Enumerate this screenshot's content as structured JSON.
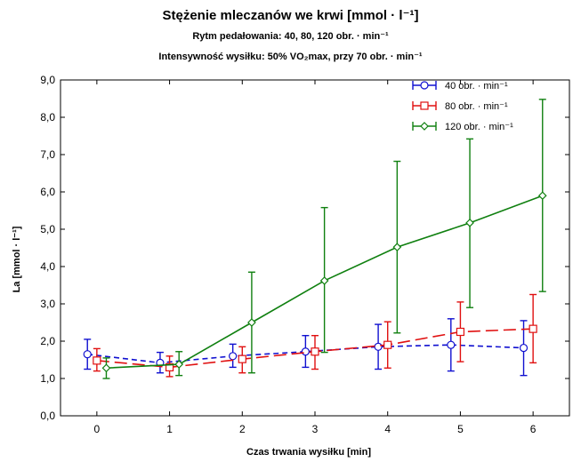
{
  "chart_data": {
    "type": "line",
    "title": "Stężenie mleczanów we krwi [mmol · l⁻¹]",
    "subtitle": "Rytm pedałowania: 40, 80, 120 obr. · min⁻¹",
    "subtitle2": "Intensywność wysiłku: 50% VO₂max, przy 70 obr. · min⁻¹",
    "xlabel": "Czas trwania wysiłku [min]",
    "ylabel": "La [mmol · l⁻¹]",
    "xlim": [
      -0.5,
      6.5
    ],
    "ylim": [
      0,
      9
    ],
    "x_ticks": [
      "0",
      "1",
      "2",
      "3",
      "4",
      "5",
      "6"
    ],
    "y_ticks": [
      "0,0",
      "1,0",
      "2,0",
      "3,0",
      "4,0",
      "5,0",
      "6,0",
      "7,0",
      "8,0",
      "9,0"
    ],
    "legend_position": "top-right",
    "series": [
      {
        "name": "40 obr. · min⁻¹",
        "color": "#1010d0",
        "marker": "circle",
        "dash": "dashed-short",
        "x": [
          -0.13,
          0.87,
          1.87,
          2.87,
          3.87,
          4.87,
          5.87
        ],
        "y": [
          1.65,
          1.42,
          1.6,
          1.72,
          1.85,
          1.9,
          1.82
        ],
        "err_low": [
          1.25,
          1.15,
          1.3,
          1.3,
          1.25,
          1.2,
          1.08
        ],
        "err_high": [
          2.05,
          1.7,
          1.92,
          2.15,
          2.45,
          2.6,
          2.55
        ]
      },
      {
        "name": "80 obr. · min⁻¹",
        "color": "#e01010",
        "marker": "square",
        "dash": "dashed-long",
        "x": [
          0,
          1,
          2,
          3,
          4,
          5,
          6
        ],
        "y": [
          1.48,
          1.3,
          1.52,
          1.72,
          1.9,
          2.25,
          2.33
        ],
        "err_low": [
          1.2,
          1.05,
          1.15,
          1.25,
          1.28,
          1.45,
          1.42
        ],
        "err_high": [
          1.8,
          1.6,
          1.85,
          2.15,
          2.52,
          3.05,
          3.25
        ]
      },
      {
        "name": "120 obr. · min⁻¹",
        "color": "#108010",
        "marker": "diamond",
        "dash": "solid",
        "x": [
          0.13,
          1.13,
          2.13,
          3.13,
          4.13,
          5.13,
          6.13
        ],
        "y": [
          1.28,
          1.38,
          2.5,
          3.62,
          4.52,
          5.17,
          5.9
        ],
        "err_low": [
          1.0,
          1.08,
          1.15,
          1.7,
          2.22,
          2.9,
          3.33
        ],
        "err_high": [
          1.55,
          1.72,
          3.85,
          5.58,
          6.82,
          7.42,
          8.48
        ]
      }
    ]
  }
}
